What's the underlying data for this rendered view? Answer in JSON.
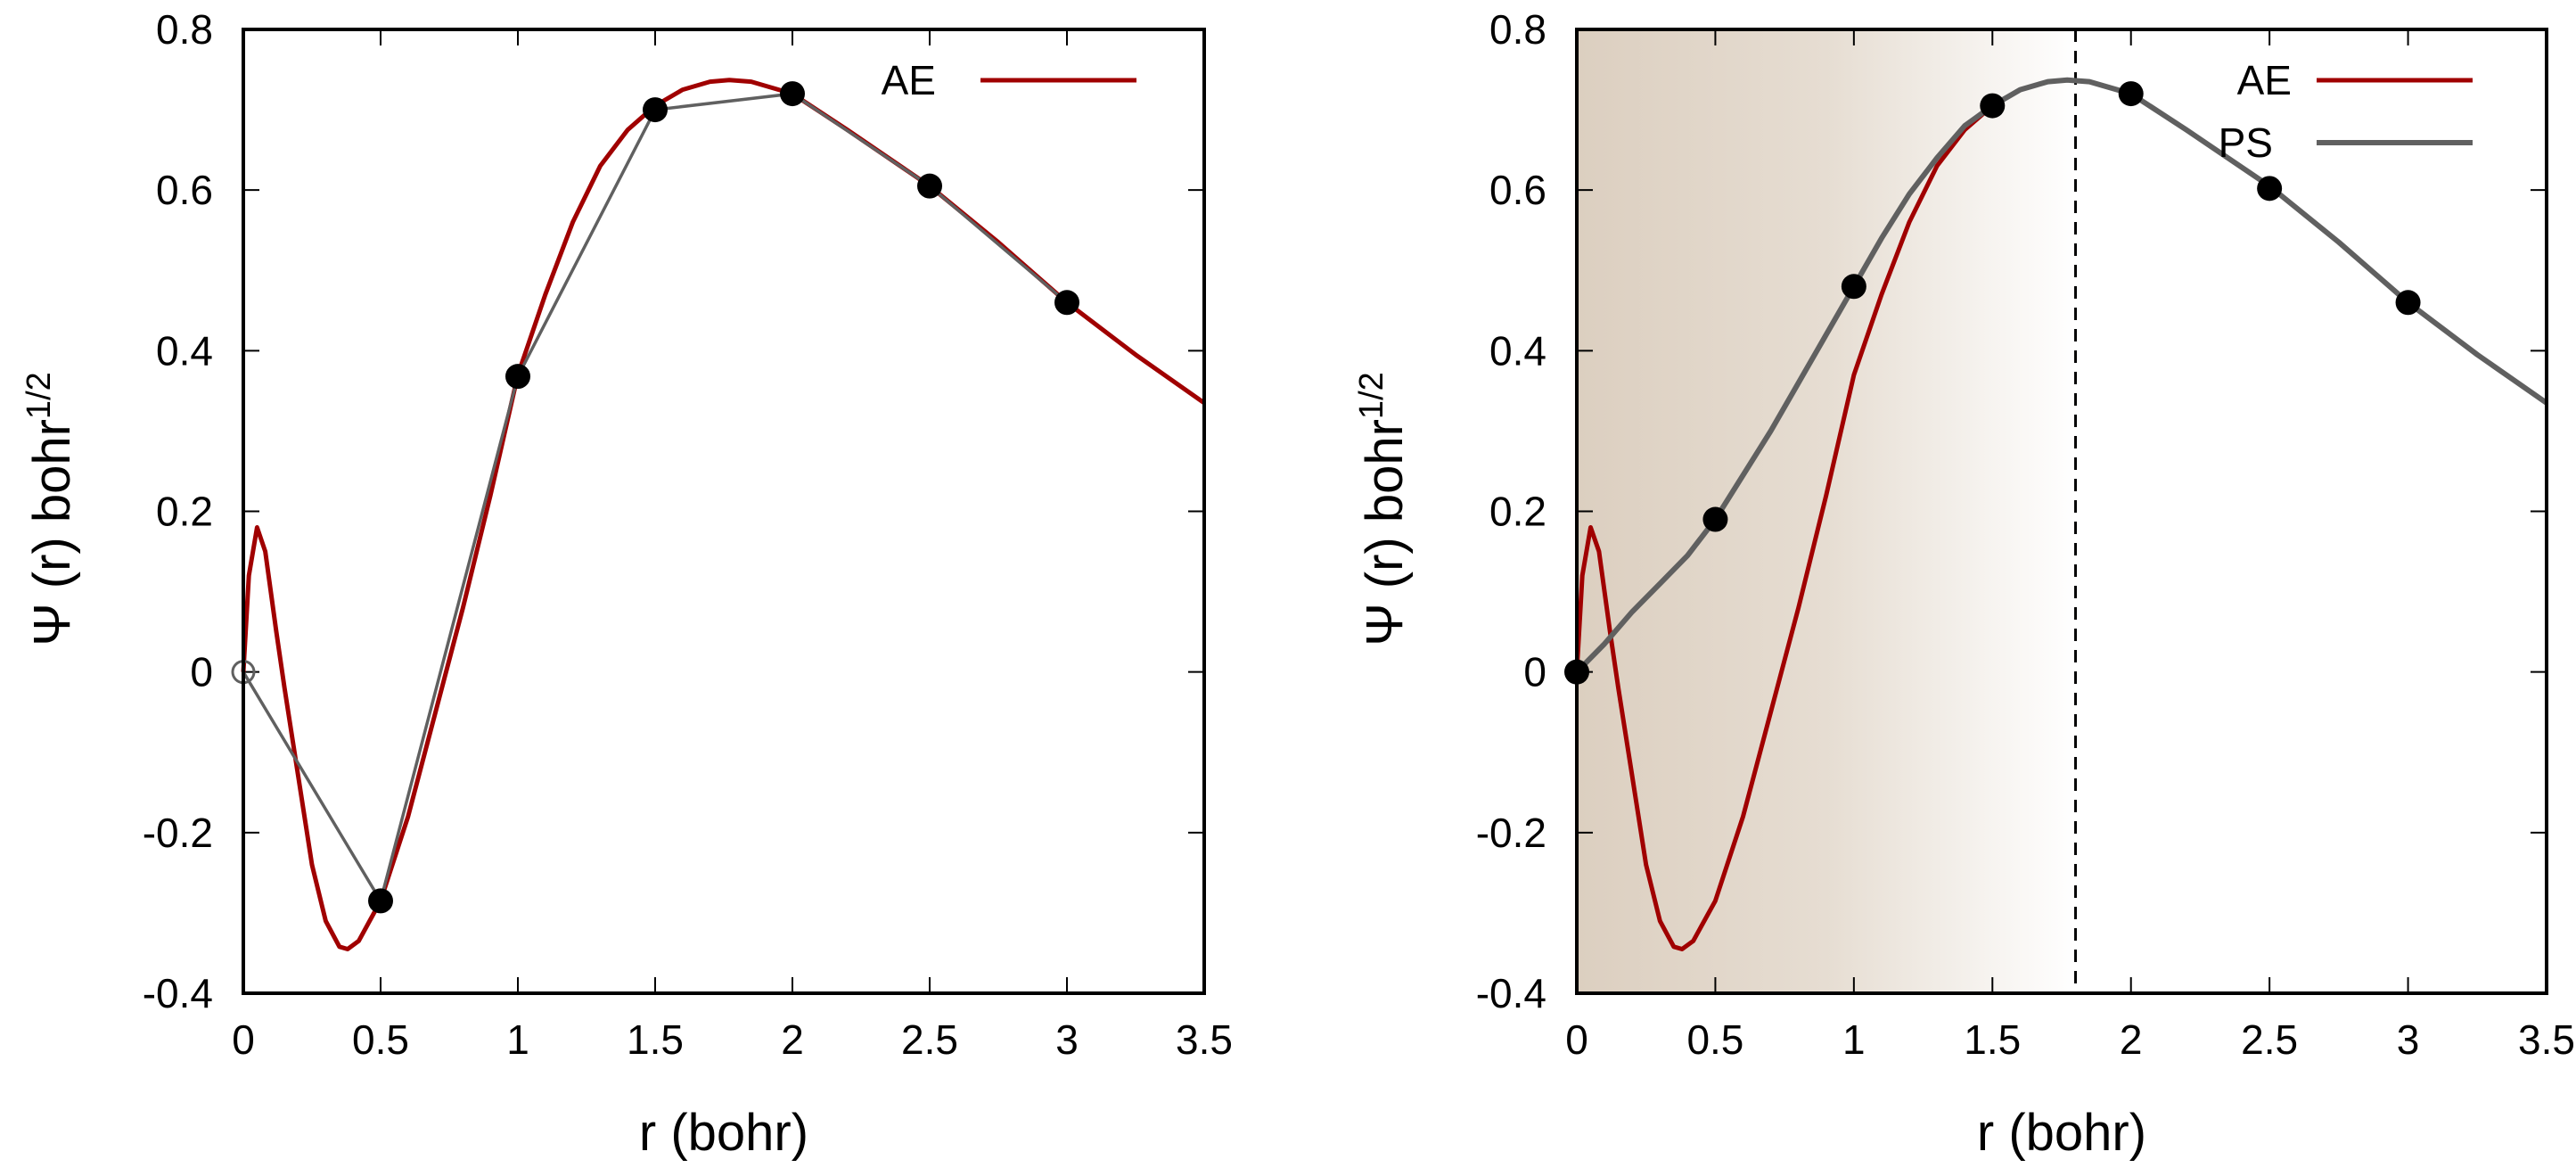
{
  "colors": {
    "ae": "#a00000",
    "ps": "#606060",
    "points": "#000000",
    "shade_start": "#dccfc0",
    "shade_end": "#ffffff"
  },
  "chart_data": [
    {
      "type": "line",
      "xlabel": "r (bohr)",
      "ylabel": "Ψ (r) bohr",
      "ylabel_sup": "1/2",
      "xlim": [
        0,
        3.5
      ],
      "ylim": [
        -0.4,
        0.8
      ],
      "xticks": [
        "0",
        "0.5",
        "1",
        "1.5",
        "2",
        "2.5",
        "3",
        "3.5"
      ],
      "yticks": [
        "-0.4",
        "-0.2",
        "0",
        "0.2",
        "0.4",
        "0.6",
        "0.8"
      ],
      "legend": "top-right",
      "series": [
        {
          "name": "AE",
          "color": "#a00000",
          "x": [
            0,
            0.02,
            0.05,
            0.08,
            0.12,
            0.15,
            0.2,
            0.25,
            0.3,
            0.35,
            0.38,
            0.42,
            0.5,
            0.6,
            0.7,
            0.8,
            0.9,
            1.0,
            1.1,
            1.2,
            1.3,
            1.4,
            1.5,
            1.6,
            1.7,
            1.77,
            1.85,
            1.9,
            2.0,
            2.2,
            2.5,
            2.75,
            3.0,
            3.25,
            3.5
          ],
          "y": [
            0,
            0.12,
            0.18,
            0.15,
            0.05,
            -0.02,
            -0.13,
            -0.24,
            -0.31,
            -0.342,
            -0.345,
            -0.335,
            -0.285,
            -0.18,
            -0.05,
            0.08,
            0.22,
            0.37,
            0.47,
            0.56,
            0.63,
            0.675,
            0.705,
            0.725,
            0.735,
            0.737,
            0.735,
            0.73,
            0.72,
            0.675,
            0.605,
            0.535,
            0.46,
            0.395,
            0.335
          ]
        },
        {
          "role": "sampled-points",
          "color": "#606060",
          "x": [
            0,
            0.5,
            1,
            1.5,
            2,
            2.5,
            3
          ],
          "y": [
            0,
            -0.285,
            0.368,
            0.7,
            0.72,
            0.605,
            0.46
          ],
          "open_first_point": true
        }
      ]
    },
    {
      "type": "line",
      "xlabel": "r (bohr)",
      "ylabel": "Ψ (r) bohr",
      "ylabel_sup": "1/2",
      "xlim": [
        0,
        3.5
      ],
      "ylim": [
        -0.4,
        0.8
      ],
      "xticks": [
        "0",
        "0.5",
        "1",
        "1.5",
        "2",
        "2.5",
        "3",
        "3.5"
      ],
      "yticks": [
        "-0.4",
        "-0.2",
        "0",
        "0.2",
        "0.4",
        "0.6",
        "0.8"
      ],
      "legend": "top-right",
      "cutoff_radius": 1.8,
      "shaded_region": [
        0,
        1.8
      ],
      "series": [
        {
          "name": "AE",
          "color": "#a00000",
          "x": [
            0,
            0.02,
            0.05,
            0.08,
            0.12,
            0.15,
            0.2,
            0.25,
            0.3,
            0.35,
            0.38,
            0.42,
            0.5,
            0.6,
            0.7,
            0.8,
            0.9,
            1.0,
            1.1,
            1.2,
            1.3,
            1.4,
            1.5,
            1.6,
            1.7,
            1.77
          ],
          "y": [
            0,
            0.12,
            0.18,
            0.15,
            0.05,
            -0.02,
            -0.13,
            -0.24,
            -0.31,
            -0.342,
            -0.345,
            -0.335,
            -0.285,
            -0.18,
            -0.05,
            0.08,
            0.22,
            0.37,
            0.47,
            0.56,
            0.63,
            0.675,
            0.705,
            0.725,
            0.735,
            0.737
          ]
        },
        {
          "name": "PS",
          "color": "#606060",
          "x": [
            0,
            0.1,
            0.2,
            0.3,
            0.4,
            0.5,
            0.6,
            0.7,
            0.8,
            0.9,
            1.0,
            1.1,
            1.2,
            1.3,
            1.4,
            1.5,
            1.6,
            1.7,
            1.77,
            1.85,
            1.9,
            2.0,
            2.2,
            2.5,
            2.75,
            3.0,
            3.25,
            3.5
          ],
          "y": [
            0,
            0.035,
            0.075,
            0.11,
            0.145,
            0.19,
            0.245,
            0.3,
            0.36,
            0.42,
            0.48,
            0.54,
            0.595,
            0.64,
            0.68,
            0.705,
            0.725,
            0.735,
            0.737,
            0.735,
            0.73,
            0.72,
            0.675,
            0.605,
            0.535,
            0.46,
            0.395,
            0.335
          ]
        },
        {
          "role": "sampled-points",
          "color": "#000000",
          "x": [
            0,
            0.5,
            1,
            1.5,
            2,
            2.5,
            3
          ],
          "y": [
            0,
            0.19,
            0.48,
            0.705,
            0.72,
            0.602,
            0.46
          ]
        }
      ]
    }
  ]
}
